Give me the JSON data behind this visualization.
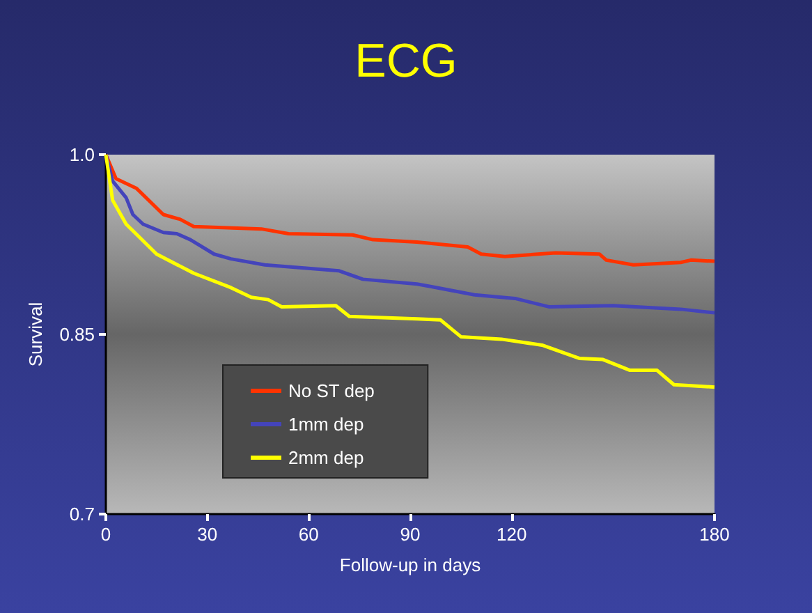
{
  "chart_data": {
    "type": "line",
    "title": "ECG",
    "xlabel": "Follow-up in days",
    "ylabel": "Survival",
    "xlim": [
      0,
      180
    ],
    "xticks": [
      0,
      30,
      60,
      90,
      120,
      180
    ],
    "ylim": [
      0.7,
      1.0
    ],
    "yticks": [
      {
        "value": 0.7,
        "label": "0.7"
      },
      {
        "value": 0.85,
        "label": "0.85"
      },
      {
        "value": 1.0,
        "label": "1.0"
      }
    ],
    "grid": false,
    "legend": "bottom left",
    "marker": "none",
    "line_style": "solid",
    "series": [
      {
        "name": "No ST dep",
        "color": "#ff3300",
        "x": [
          0,
          3,
          9,
          17,
          22,
          26,
          46,
          54,
          73,
          79,
          92,
          107,
          111,
          118,
          133,
          146,
          148,
          156,
          170,
          173,
          180
        ],
        "values": [
          1.0,
          0.98,
          0.972,
          0.95,
          0.946,
          0.94,
          0.938,
          0.934,
          0.933,
          0.929,
          0.927,
          0.923,
          0.917,
          0.915,
          0.918,
          0.917,
          0.912,
          0.908,
          0.91,
          0.912,
          0.911
        ]
      },
      {
        "name": "1mm dep",
        "color": "#4444bb",
        "x": [
          0,
          2,
          6,
          8,
          11,
          17,
          21,
          25,
          32,
          37,
          47,
          56,
          69,
          76,
          92,
          96,
          109,
          121,
          131,
          150,
          170,
          180
        ],
        "values": [
          1.0,
          0.978,
          0.964,
          0.95,
          0.942,
          0.935,
          0.934,
          0.929,
          0.917,
          0.913,
          0.908,
          0.906,
          0.903,
          0.896,
          0.892,
          0.89,
          0.883,
          0.88,
          0.873,
          0.874,
          0.871,
          0.868
        ]
      },
      {
        "name": "2mm dep",
        "color": "#ffff00",
        "x": [
          0,
          2,
          6,
          15,
          26,
          37,
          43,
          48,
          52,
          68,
          72,
          92,
          99,
          105,
          117,
          129,
          140,
          147,
          155,
          163,
          168,
          180
        ],
        "values": [
          1.0,
          0.962,
          0.942,
          0.917,
          0.901,
          0.889,
          0.881,
          0.879,
          0.873,
          0.874,
          0.865,
          0.863,
          0.862,
          0.848,
          0.846,
          0.841,
          0.83,
          0.829,
          0.82,
          0.82,
          0.808,
          0.806
        ]
      }
    ]
  }
}
